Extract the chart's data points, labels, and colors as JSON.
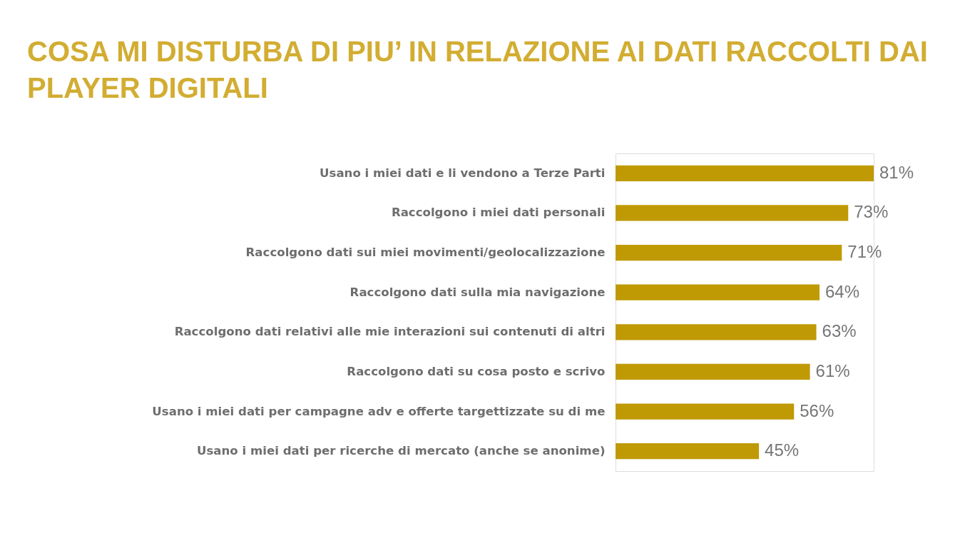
{
  "chart_data": {
    "type": "bar",
    "orientation": "horizontal",
    "title": "COSA MI DISTURBA DI PIU’ IN RELAZIONE AI DATI RACCOLTI DAI PLAYER DIGITALI",
    "categories": [
      "Usano i miei dati e li vendono a Terze Parti",
      "Raccolgono i miei dati personali",
      "Raccolgono dati sui miei movimenti/geolocalizzazione",
      "Raccolgono dati sulla mia navigazione",
      "Raccolgono dati relativi alle mie interazioni sui contenuti di altri",
      "Raccolgono dati su cosa posto e scrivo",
      "Usano i miei dati per campagne adv e offerte targettizzate su di me",
      "Usano i miei dati per ricerche di mercato (anche se anonime)"
    ],
    "values": [
      81,
      73,
      71,
      64,
      63,
      61,
      56,
      45
    ],
    "value_labels": [
      "81%",
      "73%",
      "71%",
      "64%",
      "63%",
      "61%",
      "56%",
      "45%"
    ],
    "color": "#bf9a05",
    "tick_labels": "y"
  }
}
